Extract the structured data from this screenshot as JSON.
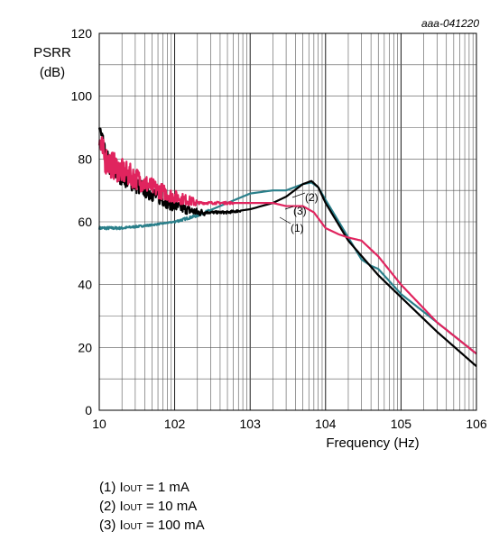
{
  "chart_data": {
    "type": "line",
    "reference": "aaa-041220",
    "ylabel_line1": "PSRR",
    "ylabel_line2": "(dB)",
    "xlabel": "Frequency (Hz)",
    "x_scale": "log",
    "xlim": [
      10,
      1000000
    ],
    "ylim": [
      0,
      120
    ],
    "grid": true,
    "x_tick_labels": [
      "10",
      "102",
      "103",
      "104",
      "105",
      "106"
    ],
    "y_ticks": [
      0,
      20,
      40,
      60,
      80,
      100,
      120
    ],
    "series": [
      {
        "name": "(1)",
        "color": "#000000",
        "points": [
          [
            10,
            90
          ],
          [
            12,
            80
          ],
          [
            15,
            77
          ],
          [
            20,
            75
          ],
          [
            30,
            72
          ],
          [
            50,
            69
          ],
          [
            100,
            65
          ],
          [
            200,
            63
          ],
          [
            500,
            63
          ],
          [
            1000,
            64
          ],
          [
            2000,
            66
          ],
          [
            3000,
            68
          ],
          [
            5000,
            72
          ],
          [
            6500,
            73
          ],
          [
            8000,
            71
          ],
          [
            10000,
            66
          ],
          [
            20000,
            54
          ],
          [
            50000,
            43
          ],
          [
            100000,
            36
          ],
          [
            300000,
            25
          ],
          [
            1000000,
            14
          ]
        ],
        "noise": [
          10,
          250,
          4
        ]
      },
      {
        "name": "(2)",
        "color": "#2a7f8a",
        "points": [
          [
            10,
            58
          ],
          [
            20,
            58
          ],
          [
            50,
            59
          ],
          [
            100,
            60
          ],
          [
            200,
            62
          ],
          [
            500,
            66
          ],
          [
            1000,
            69
          ],
          [
            2000,
            70
          ],
          [
            3000,
            70
          ],
          [
            5000,
            72
          ],
          [
            6500,
            72.5
          ],
          [
            8000,
            71
          ],
          [
            10000,
            67
          ],
          [
            20000,
            55
          ],
          [
            30000,
            48
          ],
          [
            40000,
            46
          ],
          [
            50000,
            45
          ],
          [
            100000,
            37
          ],
          [
            300000,
            28
          ],
          [
            1000000,
            18
          ]
        ],
        "noise": [
          10,
          100,
          0.5
        ]
      },
      {
        "name": "(3)",
        "color": "#e0245e",
        "points": [
          [
            10,
            85
          ],
          [
            12,
            80
          ],
          [
            15,
            78
          ],
          [
            20,
            76
          ],
          [
            30,
            74
          ],
          [
            50,
            71
          ],
          [
            100,
            68
          ],
          [
            200,
            66
          ],
          [
            500,
            66
          ],
          [
            1000,
            66
          ],
          [
            2000,
            66
          ],
          [
            3000,
            65
          ],
          [
            5000,
            65
          ],
          [
            7000,
            63
          ],
          [
            10000,
            58
          ],
          [
            15000,
            56
          ],
          [
            20000,
            55
          ],
          [
            30000,
            54
          ],
          [
            50000,
            49
          ],
          [
            100000,
            40
          ],
          [
            300000,
            28
          ],
          [
            1000000,
            18
          ]
        ],
        "noise": [
          10,
          200,
          5
        ]
      }
    ],
    "annotations": [
      "(2)",
      "(3)",
      "(1)"
    ]
  },
  "legend": [
    {
      "prefix": "(1) I",
      "sub": "OUT",
      "suffix": " = 1 mA"
    },
    {
      "prefix": "(2) I",
      "sub": "OUT",
      "suffix": " = 10 mA"
    },
    {
      "prefix": "(3) I",
      "sub": "OUT",
      "suffix": " = 100 mA"
    }
  ]
}
